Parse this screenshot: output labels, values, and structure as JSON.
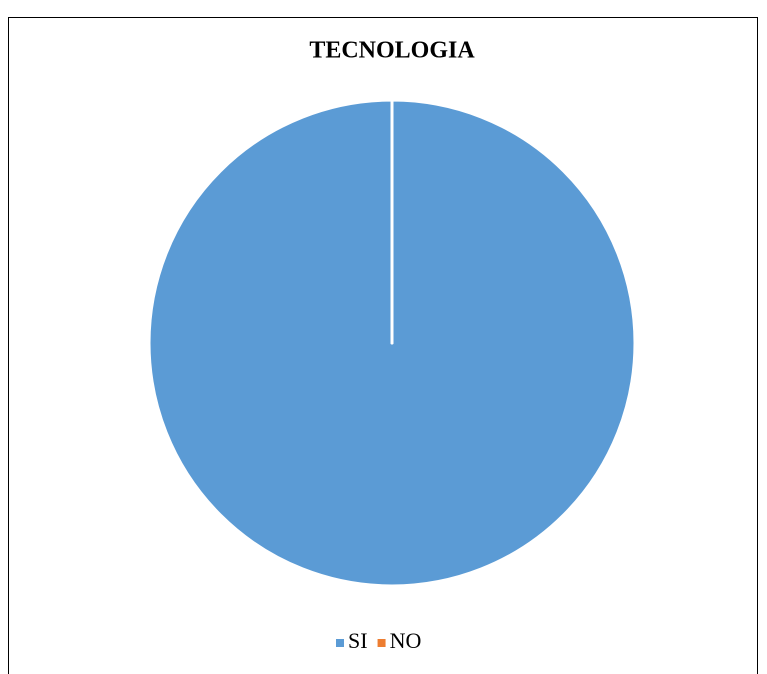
{
  "chart_data": {
    "type": "pie",
    "title": "TECNOLOGIA",
    "categories": [
      "SI",
      "NO"
    ],
    "values": [
      100,
      0
    ],
    "colors": [
      "#5b9bd5",
      "#ed7d31"
    ],
    "legend": "bottom"
  }
}
